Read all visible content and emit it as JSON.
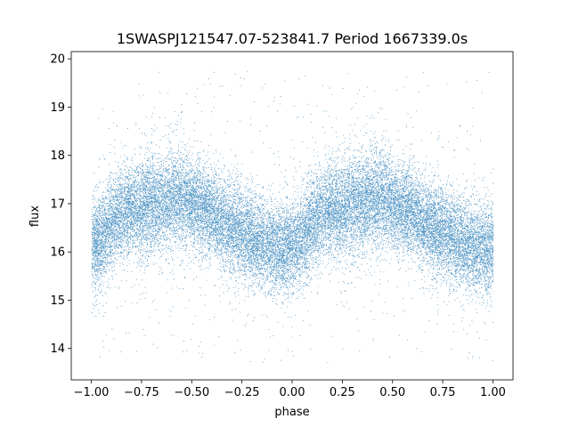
{
  "chart_data": {
    "type": "scatter",
    "title": "1SWASPJ121547.07-523841.7 Period 1667339.0s",
    "xlabel": "phase",
    "ylabel": "flux",
    "xlim": [
      -1.1,
      1.1
    ],
    "ylim": [
      13.35,
      20.15
    ],
    "xticks": [
      -1.0,
      -0.75,
      -0.5,
      -0.25,
      0.0,
      0.25,
      0.5,
      0.75,
      1.0
    ],
    "xtick_labels": [
      "−1.00",
      "−0.75",
      "−0.50",
      "−0.25",
      "0.00",
      "0.25",
      "0.50",
      "0.75",
      "1.00"
    ],
    "yticks": [
      14,
      15,
      16,
      17,
      18,
      19,
      20
    ],
    "ytick_labels": [
      "14",
      "15",
      "16",
      "17",
      "18",
      "19",
      "20"
    ],
    "grid": false,
    "marker_color": "#1f77b4",
    "series": [
      {
        "phase_profile": {
          "x": [
            -1.0,
            -0.95,
            -0.9,
            -0.85,
            -0.8,
            -0.75,
            -0.7,
            -0.65,
            -0.6,
            -0.55,
            -0.5,
            -0.45,
            -0.4,
            -0.35,
            -0.3,
            -0.25,
            -0.2,
            -0.15,
            -0.1,
            -0.05,
            0.0,
            0.05,
            0.1,
            0.15,
            0.2,
            0.25,
            0.3,
            0.35,
            0.4,
            0.45,
            0.5,
            0.55,
            0.6,
            0.65,
            0.7,
            0.75,
            0.8,
            0.85,
            0.9,
            0.95,
            1.0
          ],
          "y_center": [
            16.1,
            16.3,
            16.6,
            16.8,
            16.9,
            16.9,
            17.0,
            17.0,
            17.1,
            17.1,
            17.0,
            16.9,
            16.8,
            16.6,
            16.5,
            16.4,
            16.3,
            16.2,
            16.1,
            16.0,
            16.1,
            16.3,
            16.6,
            16.8,
            16.9,
            16.9,
            17.0,
            17.0,
            17.1,
            17.1,
            17.0,
            16.9,
            16.8,
            16.6,
            16.5,
            16.4,
            16.3,
            16.2,
            16.1,
            16.0,
            16.1
          ],
          "y_spread": [
            0.45,
            0.45,
            0.45,
            0.45,
            0.45,
            0.5,
            0.5,
            0.5,
            0.5,
            0.5,
            0.45,
            0.45,
            0.45,
            0.45,
            0.45,
            0.45,
            0.45,
            0.45,
            0.45,
            0.45,
            0.45,
            0.45,
            0.45,
            0.45,
            0.45,
            0.5,
            0.5,
            0.5,
            0.5,
            0.5,
            0.45,
            0.45,
            0.45,
            0.45,
            0.45,
            0.45,
            0.45,
            0.45,
            0.45,
            0.45,
            0.45
          ]
        },
        "y_range_observed": [
          13.7,
          19.8
        ],
        "approx_point_count": 26000
      }
    ]
  }
}
